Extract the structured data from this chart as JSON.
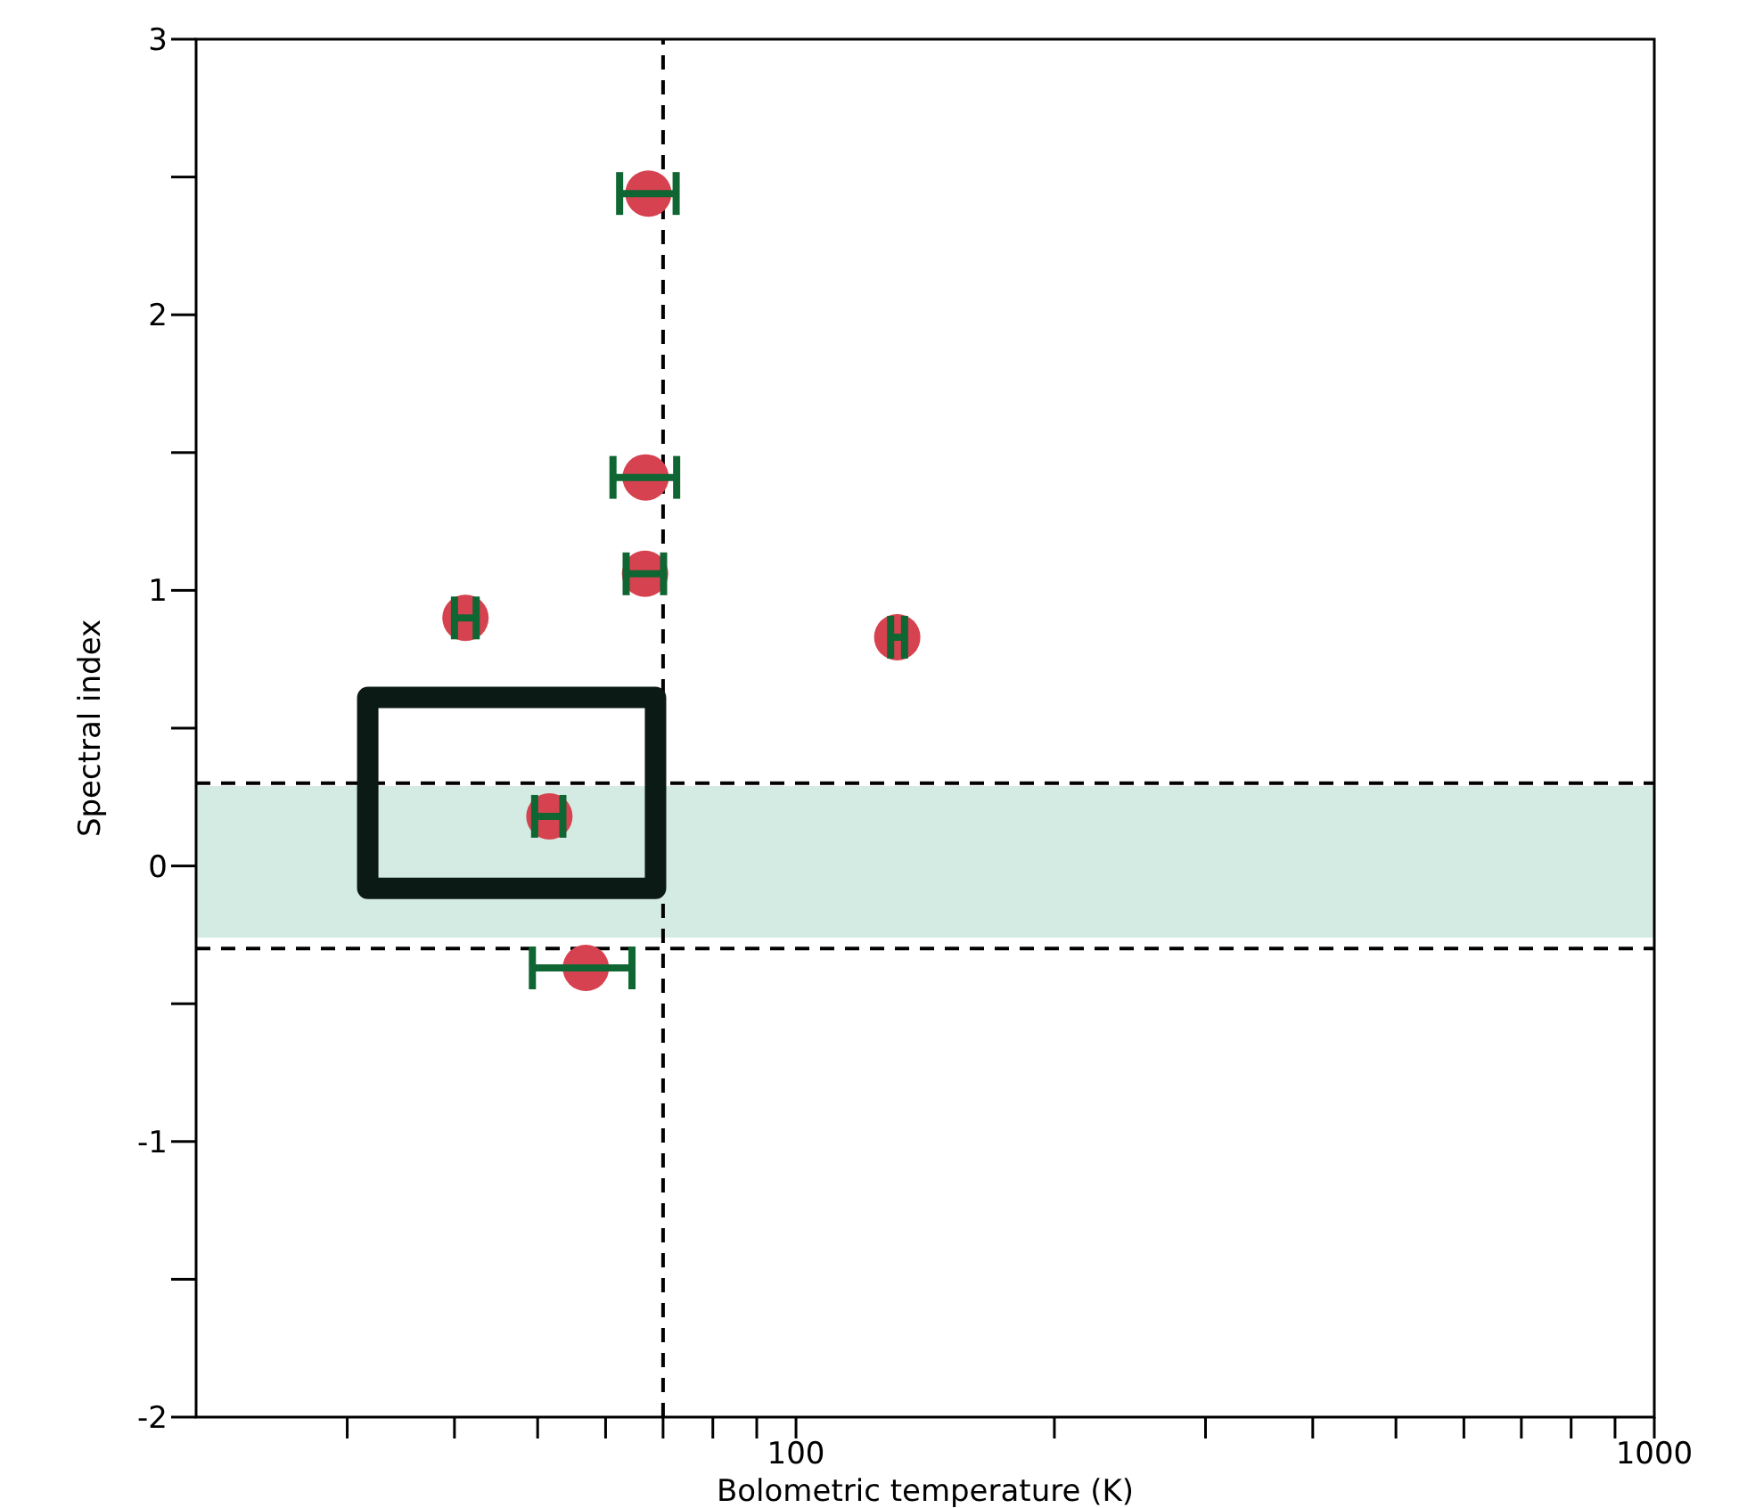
{
  "chart_data": {
    "type": "scatter",
    "xlabel": "Bolometric temperature (K)",
    "ylabel": "Spectral index",
    "x": [
      67.3,
      66.8,
      66.7,
      41.2,
      131.2,
      51.6,
      56.9
    ],
    "series": [
      {
        "color": "#d6424f",
        "values": [
          2.44,
          1.41,
          1.06,
          0.9,
          0.83,
          0.18,
          -0.37
        ],
        "xerrors": [
          [
            62.3,
            72.5
          ],
          [
            61.2,
            72.6
          ],
          [
            63.4,
            70.1
          ],
          [
            40.0,
            42.4
          ],
          [
            128.9,
            133.8
          ],
          [
            49.6,
            53.5
          ],
          [
            49.3,
            64.4
          ]
        ]
      }
    ],
    "log": "x",
    "xlim": [
      20,
      1000
    ],
    "ylim": [
      -2,
      3
    ],
    "xticks": [
      {
        "value": 30,
        "label": null
      },
      {
        "value": 40,
        "label": null
      },
      {
        "value": 50,
        "label": null
      },
      {
        "value": 60,
        "label": null
      },
      {
        "value": 70,
        "label": null
      },
      {
        "value": 80,
        "label": null
      },
      {
        "value": 90,
        "label": null
      },
      100,
      {
        "value": 200,
        "label": null
      },
      {
        "value": 300,
        "label": null
      },
      {
        "value": 400,
        "label": null
      },
      {
        "value": 500,
        "label": null
      },
      {
        "value": 600,
        "label": null
      },
      {
        "value": 700,
        "label": null
      },
      {
        "value": 800,
        "label": null
      },
      {
        "value": 900,
        "label": null
      },
      1000
    ],
    "yticks": [
      -2,
      {
        "value": -1.5,
        "label": null
      },
      -1,
      {
        "value": -0.5,
        "label": null
      },
      0,
      {
        "value": 0.5,
        "label": null
      },
      1,
      {
        "value": 1.5,
        "label": null
      },
      2,
      {
        "value": 2.5,
        "label": null
      },
      3
    ],
    "ref_lines": [
      {
        "axis": "x",
        "value": 70,
        "line_style": "dashed",
        "color": "#000000"
      },
      {
        "axis": "y",
        "value": 0.3,
        "line_style": "dashed",
        "color": "#000000"
      },
      {
        "axis": "y",
        "value": -0.3,
        "line_style": "dashed",
        "color": "#000000"
      }
    ],
    "bands": [
      {
        "axis": "y",
        "from": -0.26,
        "to": 0.29,
        "color": "#d3ebe3"
      }
    ],
    "marker": "circle",
    "grid": false,
    "legend": false
  }
}
